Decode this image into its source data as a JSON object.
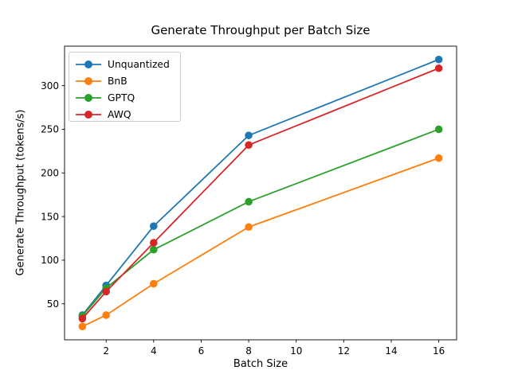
{
  "chart_data": {
    "type": "line",
    "title": "Generate Throughput per Batch Size",
    "xlabel": "Batch Size",
    "ylabel": "Generate Throughput (tokens/s)",
    "x": [
      1,
      2,
      4,
      8,
      16
    ],
    "series": [
      {
        "name": "Unquantized",
        "color": "#1f77b4",
        "values": [
          37,
          71,
          139,
          243,
          330
        ]
      },
      {
        "name": "BnB",
        "color": "#ff7f0e",
        "values": [
          24,
          37,
          73,
          138,
          217
        ]
      },
      {
        "name": "GPTQ",
        "color": "#2ca02c",
        "values": [
          36,
          68,
          112,
          167,
          250
        ]
      },
      {
        "name": "AWQ",
        "color": "#d62728",
        "values": [
          33,
          64,
          120,
          232,
          320
        ]
      }
    ],
    "xlim": [
      0.25,
      16.75
    ],
    "ylim": [
      8.7,
      345.3
    ],
    "xticks": [
      2,
      4,
      6,
      8,
      10,
      12,
      14,
      16
    ],
    "yticks": [
      50,
      100,
      150,
      200,
      250,
      300
    ],
    "grid": false,
    "legend_position": "upper left",
    "marker": "o",
    "axis_color": "#000000",
    "background": "#ffffff"
  }
}
